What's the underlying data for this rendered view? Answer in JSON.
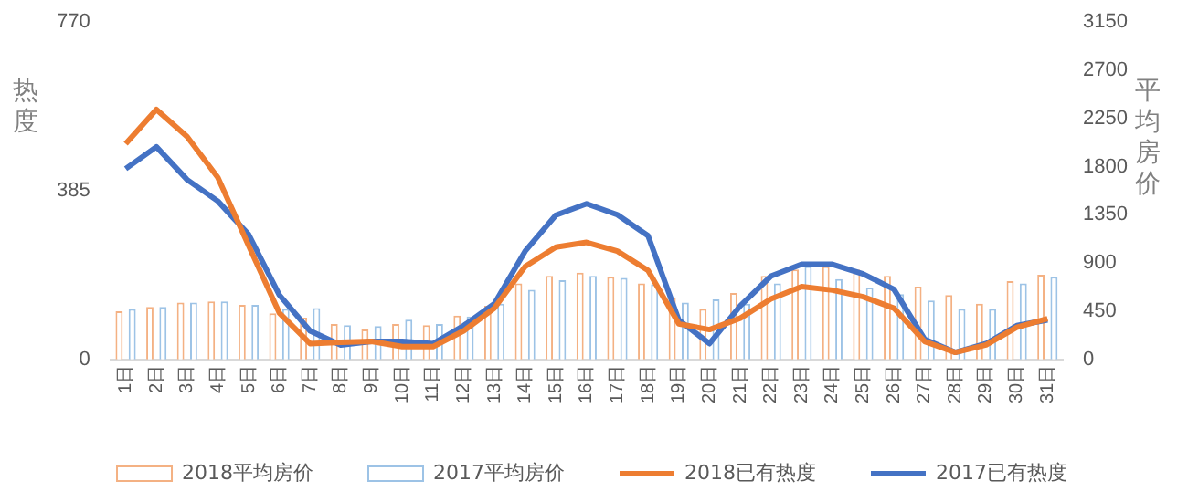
{
  "chart_data": {
    "type": "bar",
    "ylabel": "热度",
    "y2label": "平均房价",
    "categories": [
      "1日",
      "2日",
      "3日",
      "4日",
      "5日",
      "6日",
      "7日",
      "8日",
      "9日",
      "10日",
      "11日",
      "12日",
      "13日",
      "14日",
      "15日",
      "16日",
      "17日",
      "18日",
      "19日",
      "20日",
      "21日",
      "22日",
      "23日",
      "24日",
      "25日",
      "26日",
      "27日",
      "28日",
      "29日",
      "30日",
      "31日"
    ],
    "series": [
      {
        "name": "2018平均房价",
        "axis": "y2",
        "color": "#f4b183",
        "values": [
          450,
          490,
          530,
          540,
          510,
          430,
          390,
          330,
          280,
          330,
          320,
          410,
          500,
          710,
          780,
          810,
          770,
          710,
          580,
          470,
          620,
          780,
          840,
          870,
          840,
          780,
          680,
          600,
          520,
          730,
          790
        ]
      },
      {
        "name": "2017平均房价",
        "axis": "y2",
        "color": "#9dc3e6",
        "values": [
          470,
          490,
          530,
          540,
          510,
          470,
          480,
          320,
          310,
          370,
          330,
          400,
          520,
          650,
          740,
          780,
          760,
          700,
          530,
          560,
          520,
          710,
          870,
          750,
          670,
          610,
          550,
          470,
          470,
          710,
          770
        ]
      },
      {
        "name": "2018已有热度",
        "type": "line",
        "color": "#ed7d31",
        "values": [
          492,
          570,
          508,
          415,
          260,
          106,
          36,
          39,
          41,
          29,
          29,
          65,
          117,
          212,
          256,
          267,
          247,
          203,
          81,
          68,
          94,
          138,
          166,
          158,
          143,
          117,
          41,
          16,
          33,
          73,
          93
        ]
      },
      {
        "name": "2017已有热度",
        "type": "line",
        "color": "#4472c4",
        "values": [
          435,
          485,
          410,
          361,
          285,
          147,
          65,
          33,
          41,
          41,
          36,
          77,
          127,
          247,
          329,
          355,
          330,
          282,
          90,
          36,
          122,
          190,
          217,
          217,
          195,
          160,
          46,
          16,
          36,
          77,
          90
        ]
      }
    ],
    "ylim": [
      0,
      770
    ],
    "yticks": [
      0,
      385,
      770
    ],
    "y2lim": [
      0,
      3150
    ],
    "y2ticks": [
      0,
      450,
      900,
      1350,
      1800,
      2250,
      2700,
      3150
    ],
    "grid": false,
    "legend": "bottom",
    "marker": "none",
    "line_style": "solid"
  }
}
